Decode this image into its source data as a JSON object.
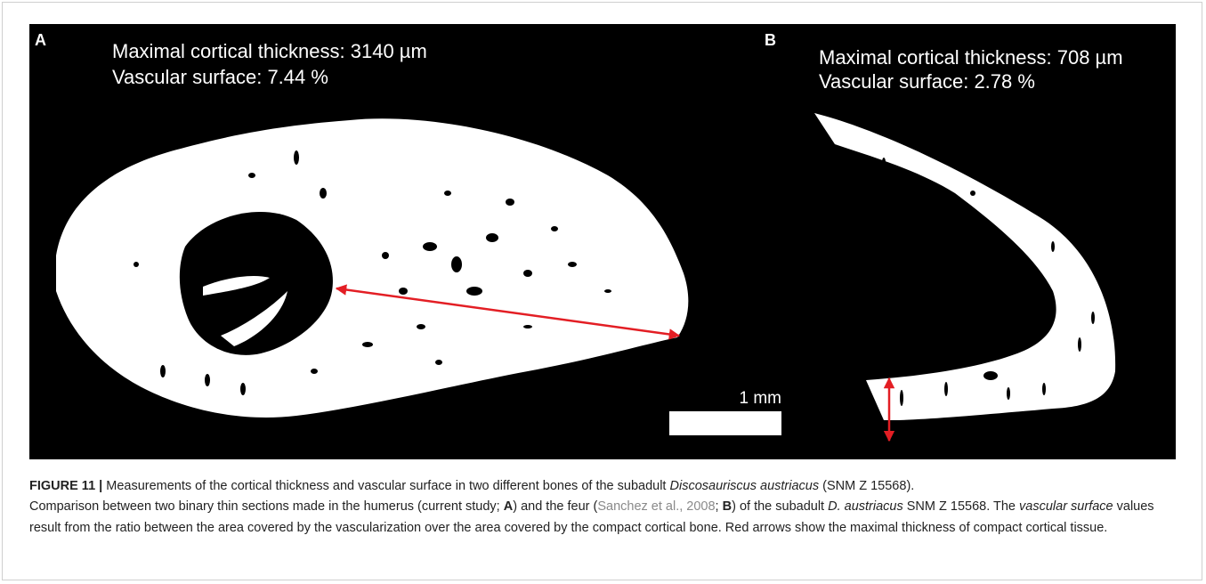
{
  "figure": {
    "panel_a": {
      "label": "A",
      "thickness": "Maximal cortical thickness: 3140 µm",
      "vascular": "Vascular surface: 7.44 %",
      "scale": "1 mm"
    },
    "panel_b": {
      "label": "B",
      "thickness": "Maximal cortical thickness: 708 µm",
      "vascular": "Vascular surface: 2.78 %"
    },
    "caption": {
      "parts": [
        "FIGURE 11 | ",
        "Measurements of the cortical thickness and vascular surface in two different bones of the subadult ",
        "Discosauriscus austriacus",
        " (SNM Z 15568).",
        "Comparison between two binary thin sections made in the humerus (current study; ",
        "A",
        ") and the feur (",
        "Sanchez et al., 2008",
        "; ",
        "B",
        ") of the subadult ",
        "D. austriacus",
        " SNM Z 15568. The ",
        "vascular surface",
        " values result from the ratio between the area covered by the vascularization over the area covered by the compact cortical bone. Red arrows show the maximal thickness of compact cortical tissue."
      ]
    }
  }
}
